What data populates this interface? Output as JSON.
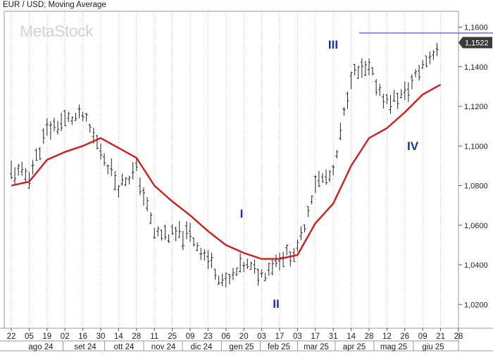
{
  "chart_data": {
    "type": "line",
    "title": "EUR / USD; Moving Average",
    "watermark": "MetaStock",
    "xlabel": "",
    "ylabel": "",
    "ylim": [
      1.008,
      1.168
    ],
    "y_ticks": [
      "1,0200",
      "1,0400",
      "1,0600",
      "1,0800",
      "1,1000",
      "1,1200",
      "1,1400",
      "1,1600"
    ],
    "last_price_label": "1,1522",
    "grid": "vertical dotted",
    "x_day_ticks": [
      "22",
      "05",
      "19",
      "02",
      "16",
      "30",
      "14",
      "28",
      "11",
      "25",
      "09",
      "23",
      "06",
      "20",
      "03",
      "17",
      "03",
      "17",
      "31",
      "14",
      "28",
      "12",
      "26",
      "09",
      "21",
      "28"
    ],
    "x_month_ticks": [
      "ago 24",
      "set 24",
      "ott 24",
      "nov 24",
      "dic 24",
      "gen 25",
      "feb 25",
      "mar 25",
      "apr 25",
      "mag 25",
      "giu 25"
    ],
    "annotations": [
      "I",
      "II",
      "III",
      "IV"
    ],
    "annotation_color": "#1f2fa8",
    "resistance_level": 1.157,
    "series": [
      {
        "role": "price",
        "style": "ohlc-bars",
        "color": "#222222",
        "x": [
          "22",
          "05",
          "19",
          "02",
          "16",
          "30",
          "14",
          "28",
          "11",
          "25",
          "09",
          "23",
          "06",
          "20",
          "03",
          "17",
          "03",
          "17",
          "31",
          "14",
          "28",
          "12",
          "26",
          "09",
          "21"
        ],
        "values": [
          1.087,
          1.085,
          1.108,
          1.113,
          1.115,
          1.098,
          1.08,
          1.088,
          1.056,
          1.055,
          1.055,
          1.043,
          1.03,
          1.04,
          1.035,
          1.044,
          1.047,
          1.082,
          1.085,
          1.136,
          1.138,
          1.122,
          1.126,
          1.141,
          1.152
        ]
      },
      {
        "role": "moving-average",
        "style": "line",
        "color": "#d01e1e",
        "x": [
          "22",
          "05",
          "19",
          "02",
          "16",
          "30",
          "14",
          "28",
          "11",
          "25",
          "09",
          "23",
          "06",
          "20",
          "03",
          "17",
          "03",
          "17",
          "31",
          "14",
          "28",
          "12",
          "26",
          "09",
          "21"
        ],
        "values": [
          1.08,
          1.082,
          1.093,
          1.097,
          1.1,
          1.104,
          1.099,
          1.094,
          1.08,
          1.072,
          1.065,
          1.057,
          1.05,
          1.046,
          1.043,
          1.043,
          1.045,
          1.061,
          1.071,
          1.09,
          1.104,
          1.109,
          1.117,
          1.126,
          1.131
        ]
      }
    ]
  }
}
